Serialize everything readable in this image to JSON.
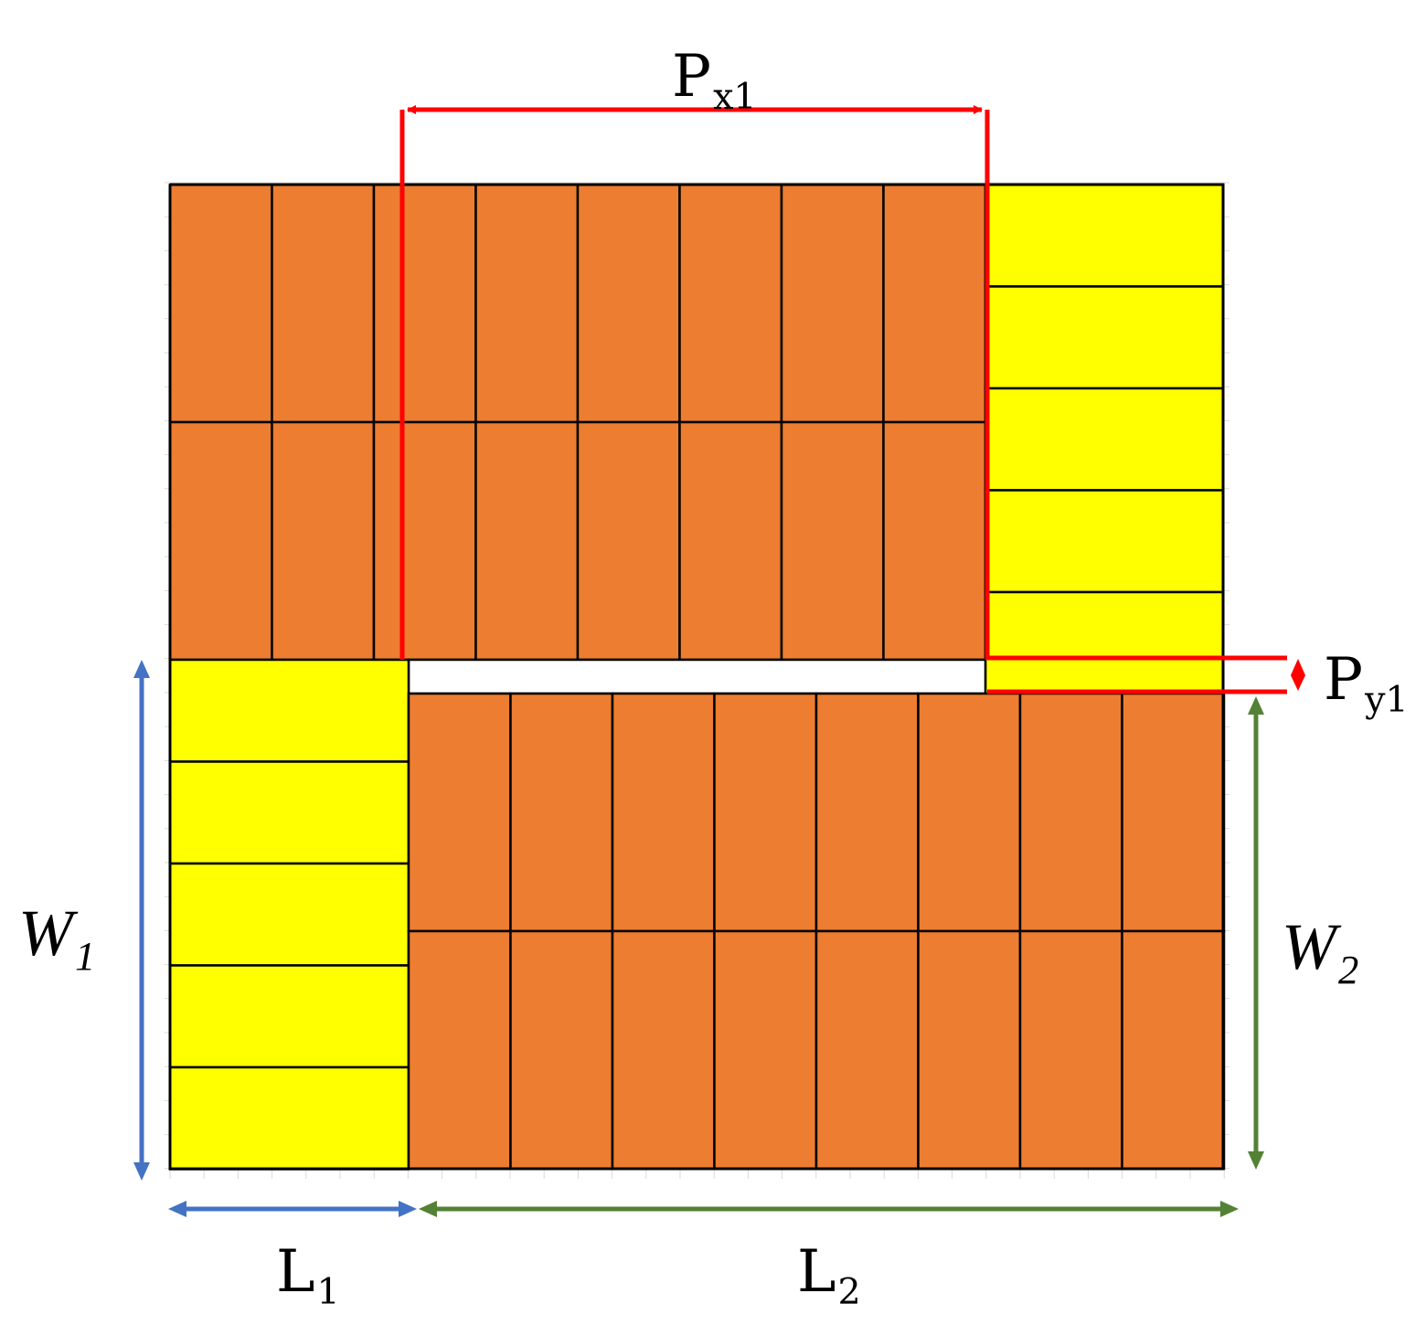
{
  "labels": {
    "px1": {
      "main": "P",
      "sub": "x1"
    },
    "py1": {
      "main": "P",
      "sub": "y1"
    },
    "w1": {
      "main": "W",
      "sub": "1"
    },
    "w2": {
      "main": "W",
      "sub": "2"
    },
    "l1": {
      "main": "L",
      "sub": "1"
    },
    "l2": {
      "main": "L",
      "sub": "2"
    }
  },
  "colors": {
    "orange_block": "#ED7D31",
    "yellow_block": "#FFFF00",
    "pitch_marker": "#FF0000",
    "dimension_1": "#4472C4",
    "dimension_2": "#548235",
    "outline": "#000000",
    "grid": "#d9d9d9"
  }
}
